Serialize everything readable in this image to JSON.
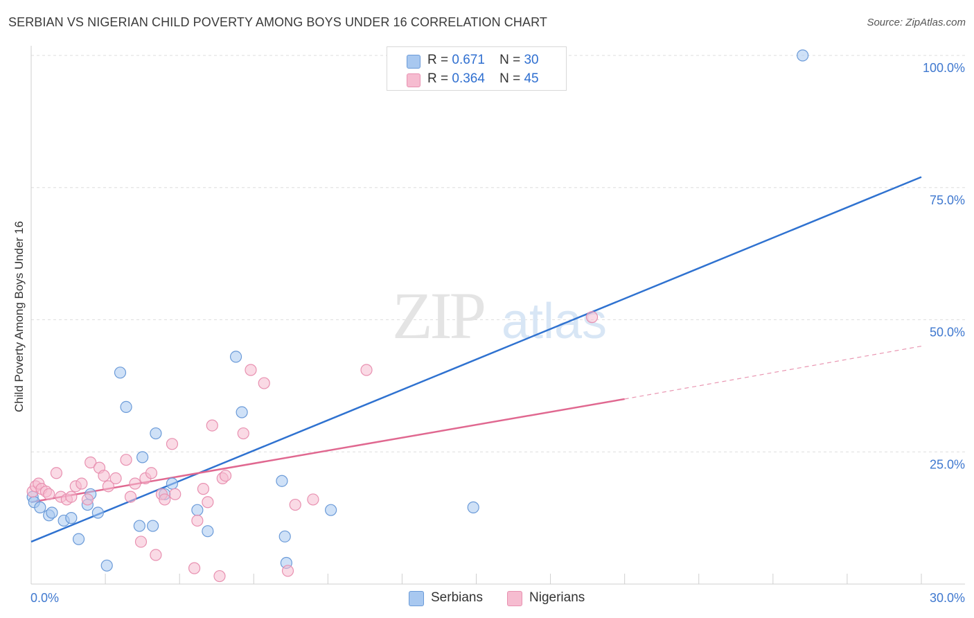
{
  "title": "SERBIAN VS NIGERIAN CHILD POVERTY AMONG BOYS UNDER 16 CORRELATION CHART",
  "source": "Source: ZipAtlas.com",
  "watermark": {
    "zip": "ZIP",
    "atlas": "atlas"
  },
  "legend": {
    "r_label": "R =",
    "n_label": "N =",
    "rows": [
      {
        "r": "0.671",
        "n": "30",
        "color": "#a8c8f0",
        "border": "#6a9ad8"
      },
      {
        "r": "0.364",
        "n": "45",
        "color": "#f6bcd0",
        "border": "#e890b0"
      }
    ]
  },
  "bottom_legend": [
    {
      "label": "Serbians",
      "color": "#a8c8f0",
      "border": "#6a9ad8"
    },
    {
      "label": "Nigerians",
      "color": "#f6bcd0",
      "border": "#e890b0"
    }
  ],
  "chart_data": {
    "type": "scatter",
    "title": "SERBIAN VS NIGERIAN CHILD POVERTY AMONG BOYS UNDER 16 CORRELATION CHART",
    "xlabel": "",
    "ylabel": "Child Poverty Among Boys Under 16",
    "xlim": [
      0,
      30
    ],
    "ylim": [
      0,
      100
    ],
    "x_tick_labels": [
      "0.0%",
      "30.0%"
    ],
    "y_ticks": [
      25,
      50,
      75,
      100
    ],
    "y_tick_labels": [
      "25.0%",
      "50.0%",
      "75.0%",
      "100.0%"
    ],
    "grid": true,
    "series": [
      {
        "name": "Serbians",
        "color": "#a8c8f0",
        "stroke": "#6a9ad8",
        "line_color": "#2f72d0",
        "x": [
          0.05,
          0.1,
          0.3,
          0.6,
          0.7,
          1.1,
          1.35,
          1.6,
          1.9,
          2.0,
          2.25,
          2.55,
          3.0,
          3.2,
          3.65,
          3.75,
          4.1,
          4.2,
          4.5,
          4.75,
          5.6,
          5.95,
          6.9,
          7.1,
          8.45,
          8.55,
          8.6,
          10.1,
          14.9,
          26.0
        ],
        "y": [
          16.5,
          15.5,
          14.5,
          13.0,
          13.5,
          12.0,
          12.5,
          8.5,
          15.0,
          17.0,
          13.5,
          3.5,
          40.0,
          33.5,
          11.0,
          24.0,
          11.0,
          28.5,
          17.0,
          19.0,
          14.0,
          10.0,
          43.0,
          32.5,
          19.5,
          9.0,
          4.0,
          14.0,
          14.5,
          100.0
        ],
        "trend": {
          "x": [
            0,
            30
          ],
          "y": [
            8.0,
            77.0
          ]
        }
      },
      {
        "name": "Nigerians",
        "color": "#f6bcd0",
        "stroke": "#e890b0",
        "line_color": "#e06890",
        "x": [
          0.05,
          0.15,
          0.25,
          0.35,
          0.5,
          0.6,
          0.85,
          1.0,
          1.2,
          1.35,
          1.5,
          1.7,
          1.9,
          2.0,
          2.3,
          2.45,
          2.6,
          2.85,
          3.2,
          3.35,
          3.5,
          3.7,
          3.85,
          4.05,
          4.2,
          4.4,
          4.5,
          4.75,
          4.85,
          5.5,
          5.6,
          5.8,
          5.95,
          6.1,
          6.35,
          6.45,
          6.55,
          7.15,
          7.4,
          7.85,
          8.65,
          8.9,
          9.5,
          11.3,
          18.9
        ],
        "y": [
          17.5,
          18.5,
          19.0,
          18.0,
          17.5,
          17.0,
          21.0,
          16.5,
          16.0,
          16.5,
          18.5,
          19.0,
          16.0,
          23.0,
          22.0,
          20.5,
          18.5,
          20.0,
          23.5,
          16.5,
          19.0,
          8.0,
          20.0,
          21.0,
          5.5,
          17.0,
          16.0,
          26.5,
          17.0,
          3.0,
          12.0,
          18.0,
          15.5,
          30.0,
          1.5,
          20.0,
          20.5,
          28.5,
          40.5,
          38.0,
          2.5,
          15.0,
          16.0,
          40.5,
          50.5
        ],
        "trend": {
          "x": [
            0,
            20
          ],
          "y": [
            15.5,
            35.0
          ]
        },
        "trend_dashed": {
          "x": [
            20,
            30
          ],
          "y": [
            35.0,
            45.0
          ]
        }
      }
    ]
  }
}
